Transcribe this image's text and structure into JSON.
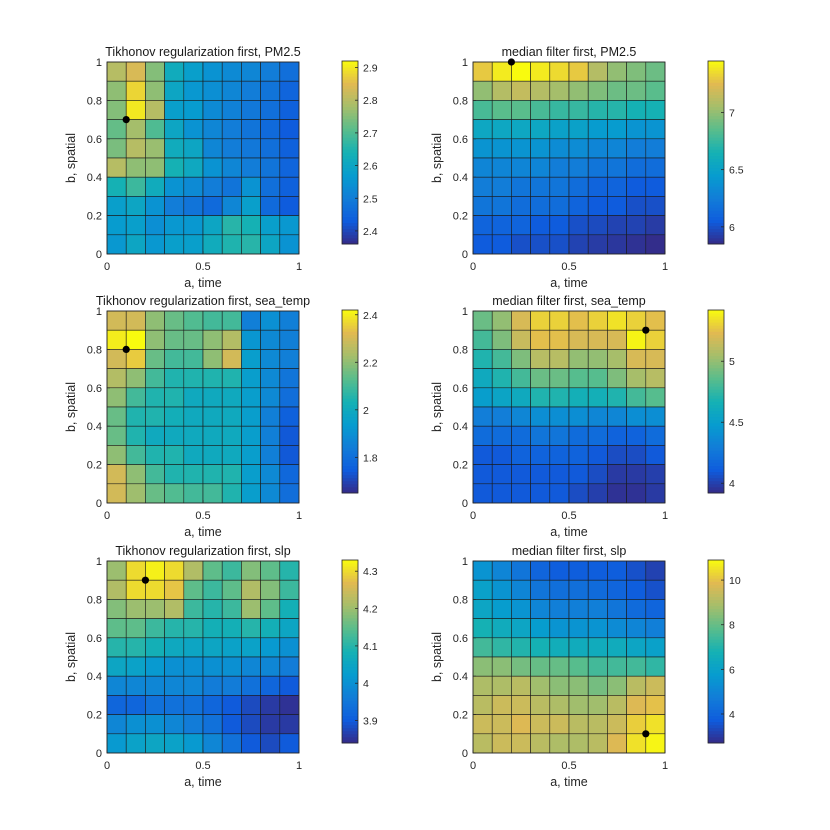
{
  "chart_data": [
    {
      "type": "heatmap",
      "title": "Tikhonov regularization first, PM2.5",
      "xlabel": "a, time",
      "ylabel": "b, spatial",
      "x_ticks": [
        0,
        0.5,
        1
      ],
      "y_ticks": [
        0,
        0.2,
        0.4,
        0.6,
        0.8,
        1
      ],
      "x_tick_labels": [
        "0",
        "0.5",
        "1"
      ],
      "y_tick_labels": [
        "0",
        "0.2",
        "0.4",
        "0.6",
        "0.8",
        "1"
      ],
      "x_centers": [
        0.05,
        0.15,
        0.25,
        0.35,
        0.45,
        0.55,
        0.65,
        0.75,
        0.85,
        0.95
      ],
      "y_centers": [
        0.95,
        0.85,
        0.75,
        0.65,
        0.55,
        0.45,
        0.35,
        0.25,
        0.15,
        0.05
      ],
      "clim": [
        2.36,
        2.92
      ],
      "colorbar_ticks": [
        2.4,
        2.5,
        2.6,
        2.7,
        2.8,
        2.9
      ],
      "colorbar_tick_labels": [
        "2.4",
        "2.5",
        "2.6",
        "2.7",
        "2.8",
        "2.9"
      ],
      "marker": {
        "x": 0.1,
        "y": 0.7
      },
      "values": [
        [
          2.8,
          2.84,
          2.75,
          2.62,
          2.58,
          2.55,
          2.53,
          2.52,
          2.5,
          2.47
        ],
        [
          2.76,
          2.88,
          2.76,
          2.6,
          2.56,
          2.54,
          2.52,
          2.5,
          2.48,
          2.45
        ],
        [
          2.75,
          2.9,
          2.8,
          2.58,
          2.57,
          2.53,
          2.51,
          2.49,
          2.47,
          2.44
        ],
        [
          2.72,
          2.78,
          2.7,
          2.6,
          2.55,
          2.52,
          2.5,
          2.48,
          2.46,
          2.43
        ],
        [
          2.74,
          2.8,
          2.77,
          2.62,
          2.6,
          2.52,
          2.5,
          2.49,
          2.47,
          2.44
        ],
        [
          2.8,
          2.76,
          2.76,
          2.64,
          2.61,
          2.55,
          2.52,
          2.5,
          2.48,
          2.45
        ],
        [
          2.64,
          2.68,
          2.62,
          2.55,
          2.53,
          2.5,
          2.48,
          2.55,
          2.47,
          2.44
        ],
        [
          2.58,
          2.6,
          2.55,
          2.5,
          2.48,
          2.46,
          2.52,
          2.58,
          2.46,
          2.43
        ],
        [
          2.57,
          2.58,
          2.54,
          2.56,
          2.56,
          2.6,
          2.66,
          2.64,
          2.58,
          2.56
        ],
        [
          2.56,
          2.6,
          2.56,
          2.58,
          2.58,
          2.62,
          2.65,
          2.66,
          2.6,
          2.55
        ]
      ]
    },
    {
      "type": "heatmap",
      "title": "median filter first, PM2.5",
      "xlabel": "a, time",
      "ylabel": "b, spatial",
      "x_ticks": [
        0,
        0.5,
        1
      ],
      "y_ticks": [
        0,
        0.2,
        0.4,
        0.6,
        0.8,
        1
      ],
      "x_tick_labels": [
        "0",
        "0.5",
        "1"
      ],
      "y_tick_labels": [
        "0",
        "0.2",
        "0.4",
        "0.6",
        "0.8",
        "1"
      ],
      "x_centers": [
        0.05,
        0.15,
        0.25,
        0.35,
        0.45,
        0.55,
        0.65,
        0.75,
        0.85,
        0.95
      ],
      "y_centers": [
        0.95,
        0.85,
        0.75,
        0.65,
        0.55,
        0.45,
        0.35,
        0.25,
        0.15,
        0.05
      ],
      "clim": [
        5.85,
        7.45
      ],
      "colorbar_ticks": [
        6,
        6.5,
        7
      ],
      "colorbar_tick_labels": [
        "6",
        "6.5",
        "7"
      ],
      "marker": {
        "x": 0.2,
        "y": 1.0
      },
      "values": [
        [
          7.3,
          7.4,
          7.45,
          7.4,
          7.35,
          7.3,
          7.1,
          7.0,
          6.95,
          6.9
        ],
        [
          7.0,
          7.1,
          7.15,
          7.1,
          7.05,
          7.0,
          6.95,
          6.9,
          6.9,
          6.85
        ],
        [
          6.8,
          6.85,
          6.85,
          6.8,
          6.75,
          6.75,
          6.7,
          6.7,
          6.65,
          6.65
        ],
        [
          6.55,
          6.55,
          6.55,
          6.55,
          6.5,
          6.5,
          6.45,
          6.45,
          6.4,
          6.4
        ],
        [
          6.4,
          6.4,
          6.4,
          6.4,
          6.35,
          6.35,
          6.3,
          6.3,
          6.25,
          6.25
        ],
        [
          6.3,
          6.3,
          6.3,
          6.3,
          6.25,
          6.25,
          6.2,
          6.2,
          6.15,
          6.15
        ],
        [
          6.25,
          6.25,
          6.2,
          6.2,
          6.2,
          6.15,
          6.1,
          6.1,
          6.05,
          6.05
        ],
        [
          6.2,
          6.2,
          6.15,
          6.15,
          6.15,
          6.1,
          6.05,
          6.05,
          6.0,
          6.0
        ],
        [
          6.1,
          6.1,
          6.1,
          6.05,
          6.05,
          6.0,
          5.98,
          5.95,
          5.95,
          5.92
        ],
        [
          6.05,
          6.05,
          6.0,
          6.0,
          6.0,
          5.95,
          5.92,
          5.9,
          5.88,
          5.86
        ]
      ]
    },
    {
      "type": "heatmap",
      "title": "Tikhonov regularization first, sea_temp",
      "xlabel": "a, time",
      "ylabel": "b, spatial",
      "x_ticks": [
        0,
        0.5,
        1
      ],
      "y_ticks": [
        0,
        0.2,
        0.4,
        0.6,
        0.8,
        1
      ],
      "x_tick_labels": [
        "0",
        "0.5",
        "1"
      ],
      "y_tick_labels": [
        "0",
        "0.2",
        "0.4",
        "0.6",
        "0.8",
        "1"
      ],
      "x_centers": [
        0.05,
        0.15,
        0.25,
        0.35,
        0.45,
        0.55,
        0.65,
        0.75,
        0.85,
        0.95
      ],
      "y_centers": [
        0.95,
        0.85,
        0.75,
        0.65,
        0.55,
        0.45,
        0.35,
        0.25,
        0.15,
        0.05
      ],
      "clim": [
        1.65,
        2.42
      ],
      "colorbar_ticks": [
        1.8,
        2,
        2.2,
        2.4
      ],
      "colorbar_tick_labels": [
        "1.8",
        "2",
        "2.2",
        "2.4"
      ],
      "marker": {
        "x": 0.1,
        "y": 0.8
      },
      "values": [
        [
          2.3,
          2.3,
          2.2,
          2.15,
          2.12,
          2.1,
          2.1,
          1.85,
          1.9,
          1.85
        ],
        [
          2.4,
          2.42,
          2.2,
          2.15,
          2.15,
          2.2,
          2.25,
          1.92,
          1.88,
          1.85
        ],
        [
          2.3,
          2.35,
          2.15,
          2.1,
          2.1,
          2.2,
          2.3,
          1.95,
          1.88,
          1.85
        ],
        [
          2.25,
          2.2,
          2.1,
          2.05,
          2.05,
          2.05,
          2.05,
          1.95,
          1.88,
          1.82
        ],
        [
          2.2,
          2.1,
          2.05,
          2.05,
          2.0,
          2.0,
          2.0,
          1.95,
          1.88,
          1.8
        ],
        [
          2.15,
          2.05,
          2.05,
          2.02,
          2.0,
          2.0,
          2.0,
          1.95,
          1.85,
          1.76
        ],
        [
          2.15,
          2.05,
          2.0,
          2.0,
          2.0,
          2.0,
          2.0,
          1.95,
          1.85,
          1.74
        ],
        [
          2.2,
          2.1,
          2.05,
          2.05,
          2.0,
          2.0,
          2.0,
          1.95,
          1.85,
          1.74
        ],
        [
          2.3,
          2.2,
          2.1,
          2.05,
          2.05,
          2.05,
          2.05,
          1.95,
          1.88,
          1.78
        ],
        [
          2.3,
          2.22,
          2.15,
          2.12,
          2.1,
          2.1,
          2.05,
          1.95,
          1.88,
          1.8
        ]
      ]
    },
    {
      "type": "heatmap",
      "title": "median filter first, sea_temp",
      "xlabel": "a, time",
      "ylabel": "b, spatial",
      "x_ticks": [
        0,
        0.5,
        1
      ],
      "y_ticks": [
        0,
        0.2,
        0.4,
        0.6,
        0.8,
        1
      ],
      "x_tick_labels": [
        "0",
        "0.5",
        "1"
      ],
      "y_tick_labels": [
        "0",
        "0.2",
        "0.4",
        "0.6",
        "0.8",
        "1"
      ],
      "x_centers": [
        0.05,
        0.15,
        0.25,
        0.35,
        0.45,
        0.55,
        0.65,
        0.75,
        0.85,
        0.95
      ],
      "y_centers": [
        0.95,
        0.85,
        0.75,
        0.65,
        0.55,
        0.45,
        0.35,
        0.25,
        0.15,
        0.05
      ],
      "clim": [
        3.92,
        5.42
      ],
      "colorbar_ticks": [
        4,
        4.5,
        5
      ],
      "colorbar_tick_labels": [
        "4",
        "4.5",
        "5"
      ],
      "marker": {
        "x": 0.9,
        "y": 0.9
      },
      "values": [
        [
          4.9,
          5.0,
          5.2,
          5.3,
          5.3,
          5.25,
          5.3,
          5.35,
          5.3,
          5.25
        ],
        [
          4.8,
          4.95,
          5.15,
          5.25,
          5.25,
          5.2,
          5.2,
          5.2,
          5.4,
          5.3
        ],
        [
          4.7,
          4.8,
          4.95,
          5.1,
          5.1,
          5.0,
          5.0,
          5.05,
          5.2,
          5.2
        ],
        [
          4.6,
          4.7,
          4.8,
          4.9,
          4.9,
          4.85,
          4.85,
          4.95,
          5.05,
          5.1
        ],
        [
          4.5,
          4.55,
          4.6,
          4.7,
          4.7,
          4.65,
          4.65,
          4.7,
          4.8,
          4.85
        ],
        [
          4.3,
          4.3,
          4.35,
          4.4,
          4.4,
          4.4,
          4.35,
          4.35,
          4.4,
          4.4
        ],
        [
          4.2,
          4.2,
          4.2,
          4.25,
          4.25,
          4.2,
          4.2,
          4.15,
          4.15,
          4.2
        ],
        [
          4.1,
          4.1,
          4.15,
          4.15,
          4.15,
          4.15,
          4.1,
          4.05,
          4.05,
          4.1
        ],
        [
          4.1,
          4.1,
          4.1,
          4.1,
          4.1,
          4.1,
          4.05,
          3.98,
          3.98,
          4.0
        ],
        [
          4.1,
          4.1,
          4.1,
          4.1,
          4.1,
          4.05,
          4.0,
          3.95,
          3.95,
          3.98
        ]
      ]
    },
    {
      "type": "heatmap",
      "title": "Tikhonov regularization first, slp",
      "xlabel": "a, time",
      "ylabel": "b, spatial",
      "x_ticks": [
        0,
        0.5,
        1
      ],
      "y_ticks": [
        0,
        0.2,
        0.4,
        0.6,
        0.8,
        1
      ],
      "x_tick_labels": [
        "0",
        "0.5",
        "1"
      ],
      "y_tick_labels": [
        "0",
        "0.2",
        "0.4",
        "0.6",
        "0.8",
        "1"
      ],
      "x_centers": [
        0.05,
        0.15,
        0.25,
        0.35,
        0.45,
        0.55,
        0.65,
        0.75,
        0.85,
        0.95
      ],
      "y_centers": [
        0.95,
        0.85,
        0.75,
        0.65,
        0.55,
        0.45,
        0.35,
        0.25,
        0.15,
        0.05
      ],
      "clim": [
        3.84,
        4.33
      ],
      "colorbar_ticks": [
        3.9,
        4,
        4.1,
        4.2,
        4.3
      ],
      "colorbar_tick_labels": [
        "3.9",
        "4",
        "4.1",
        "4.2",
        "4.3"
      ],
      "marker": {
        "x": 0.2,
        "y": 0.9
      },
      "values": [
        [
          4.2,
          4.3,
          4.32,
          4.3,
          4.22,
          4.15,
          4.12,
          4.18,
          4.15,
          4.1
        ],
        [
          4.22,
          4.3,
          4.3,
          4.28,
          4.15,
          4.12,
          4.15,
          4.22,
          4.18,
          4.12
        ],
        [
          4.18,
          4.2,
          4.2,
          4.22,
          4.12,
          4.1,
          4.12,
          4.2,
          4.15,
          4.08
        ],
        [
          4.15,
          4.15,
          4.12,
          4.1,
          4.1,
          4.08,
          4.08,
          4.1,
          4.08,
          4.05
        ],
        [
          4.1,
          4.1,
          4.08,
          4.06,
          4.05,
          4.05,
          4.04,
          4.04,
          4.02,
          4.0
        ],
        [
          4.05,
          4.04,
          4.02,
          4.0,
          4.0,
          4.0,
          4.0,
          3.98,
          3.98,
          3.96
        ],
        [
          3.98,
          3.98,
          3.98,
          3.98,
          3.98,
          3.96,
          3.96,
          3.94,
          3.92,
          3.9
        ],
        [
          3.92,
          3.92,
          3.94,
          3.94,
          3.94,
          3.92,
          3.9,
          3.88,
          3.86,
          3.85
        ],
        [
          3.98,
          4.0,
          4.0,
          3.98,
          3.96,
          3.94,
          3.9,
          3.88,
          3.86,
          3.86
        ],
        [
          4.02,
          4.04,
          4.05,
          4.04,
          4.02,
          3.98,
          3.94,
          3.9,
          3.88,
          3.9
        ]
      ]
    },
    {
      "type": "heatmap",
      "title": "median filter first, slp",
      "xlabel": "a, time",
      "ylabel": "b, spatial",
      "x_ticks": [
        0,
        0.5,
        1
      ],
      "y_ticks": [
        0,
        0.2,
        0.4,
        0.6,
        0.8,
        1
      ],
      "x_tick_labels": [
        "0",
        "0.5",
        "1"
      ],
      "y_tick_labels": [
        "0",
        "0.2",
        "0.4",
        "0.6",
        "0.8",
        "1"
      ],
      "x_centers": [
        0.05,
        0.15,
        0.25,
        0.35,
        0.45,
        0.55,
        0.65,
        0.75,
        0.85,
        0.95
      ],
      "y_centers": [
        0.95,
        0.85,
        0.75,
        0.65,
        0.55,
        0.45,
        0.35,
        0.25,
        0.15,
        0.05
      ],
      "clim": [
        2.7,
        10.9
      ],
      "colorbar_ticks": [
        4,
        6,
        8,
        10
      ],
      "colorbar_tick_labels": [
        "4",
        "6",
        "8",
        "10"
      ],
      "marker": {
        "x": 0.9,
        "y": 0.1
      },
      "values": [
        [
          5.5,
          5.0,
          4.5,
          4.0,
          3.8,
          3.8,
          3.8,
          3.8,
          3.5,
          3.2
        ],
        [
          6.0,
          5.5,
          5.0,
          4.5,
          4.3,
          4.3,
          4.2,
          4.0,
          3.8,
          3.5
        ],
        [
          6.2,
          5.8,
          5.5,
          5.0,
          4.8,
          4.8,
          4.8,
          4.5,
          4.2,
          4.0
        ],
        [
          6.8,
          6.5,
          6.2,
          5.8,
          5.5,
          5.5,
          5.5,
          5.2,
          5.0,
          4.8
        ],
        [
          7.5,
          7.2,
          7.0,
          6.8,
          6.6,
          6.5,
          6.5,
          6.5,
          6.2,
          6.0
        ],
        [
          8.5,
          8.5,
          8.2,
          8.0,
          8.0,
          7.8,
          7.5,
          7.5,
          7.5,
          7.2
        ],
        [
          9.0,
          9.0,
          9.2,
          8.8,
          8.5,
          8.5,
          8.2,
          8.5,
          9.2,
          9.5
        ],
        [
          9.2,
          9.5,
          9.5,
          9.2,
          9.0,
          8.8,
          8.8,
          9.2,
          9.8,
          10.0
        ],
        [
          9.5,
          9.5,
          9.8,
          9.5,
          9.5,
          9.2,
          9.2,
          9.5,
          10.2,
          10.5
        ],
        [
          9.2,
          9.5,
          9.5,
          9.2,
          9.0,
          9.0,
          9.2,
          9.8,
          10.5,
          10.8
        ]
      ]
    }
  ]
}
